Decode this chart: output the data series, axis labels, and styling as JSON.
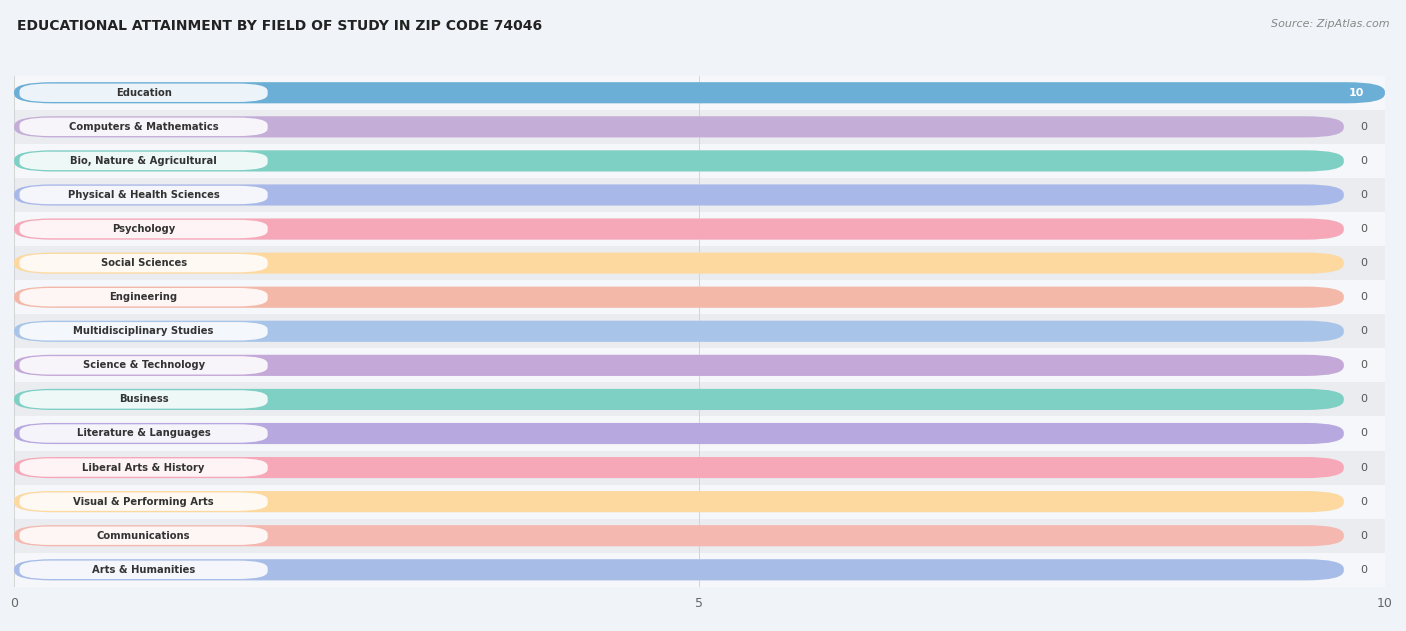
{
  "title": "EDUCATIONAL ATTAINMENT BY FIELD OF STUDY IN ZIP CODE 74046",
  "source": "Source: ZipAtlas.com",
  "categories": [
    "Education",
    "Computers & Mathematics",
    "Bio, Nature & Agricultural",
    "Physical & Health Sciences",
    "Psychology",
    "Social Sciences",
    "Engineering",
    "Multidisciplinary Studies",
    "Science & Technology",
    "Business",
    "Literature & Languages",
    "Liberal Arts & History",
    "Visual & Performing Arts",
    "Communications",
    "Arts & Humanities"
  ],
  "values": [
    10,
    0,
    0,
    0,
    0,
    0,
    0,
    0,
    0,
    0,
    0,
    0,
    0,
    0,
    0
  ],
  "bar_colors": [
    "#6baed6",
    "#c4aed8",
    "#7ecfc4",
    "#a8b8e8",
    "#f7a8b8",
    "#fdd9a0",
    "#f4b8a8",
    "#a8c4e8",
    "#c4a8d8",
    "#7ecfc4",
    "#b8a8e0",
    "#f7a8b8",
    "#fdd9a0",
    "#f4b8b0",
    "#a8bce8"
  ],
  "label_bg_colors": [
    "#6baed6",
    "#c4aed8",
    "#7ecfc4",
    "#a8b8e8",
    "#f7a8b8",
    "#fdd9a0",
    "#f4b8a8",
    "#a8c4e8",
    "#c4a8d8",
    "#7ecfc4",
    "#b8a8e0",
    "#f7a8b8",
    "#fdd9a0",
    "#f4b8b0",
    "#a8bce8"
  ],
  "label_text_colors": [
    "#ffffff",
    "#555555",
    "#555555",
    "#555555",
    "#555555",
    "#555555",
    "#555555",
    "#555555",
    "#555555",
    "#555555",
    "#555555",
    "#555555",
    "#555555",
    "#555555",
    "#555555"
  ],
  "xlim": [
    0,
    10
  ],
  "xticks": [
    0,
    5,
    10
  ],
  "background_color": "#f0f4f8",
  "row_bg_even": "#f5f7fa",
  "row_bg_odd": "#eaecf0",
  "grid_color": "#cccccc",
  "title_fontsize": 10,
  "source_fontsize": 8,
  "bar_bg_color": "#e8eaf0"
}
